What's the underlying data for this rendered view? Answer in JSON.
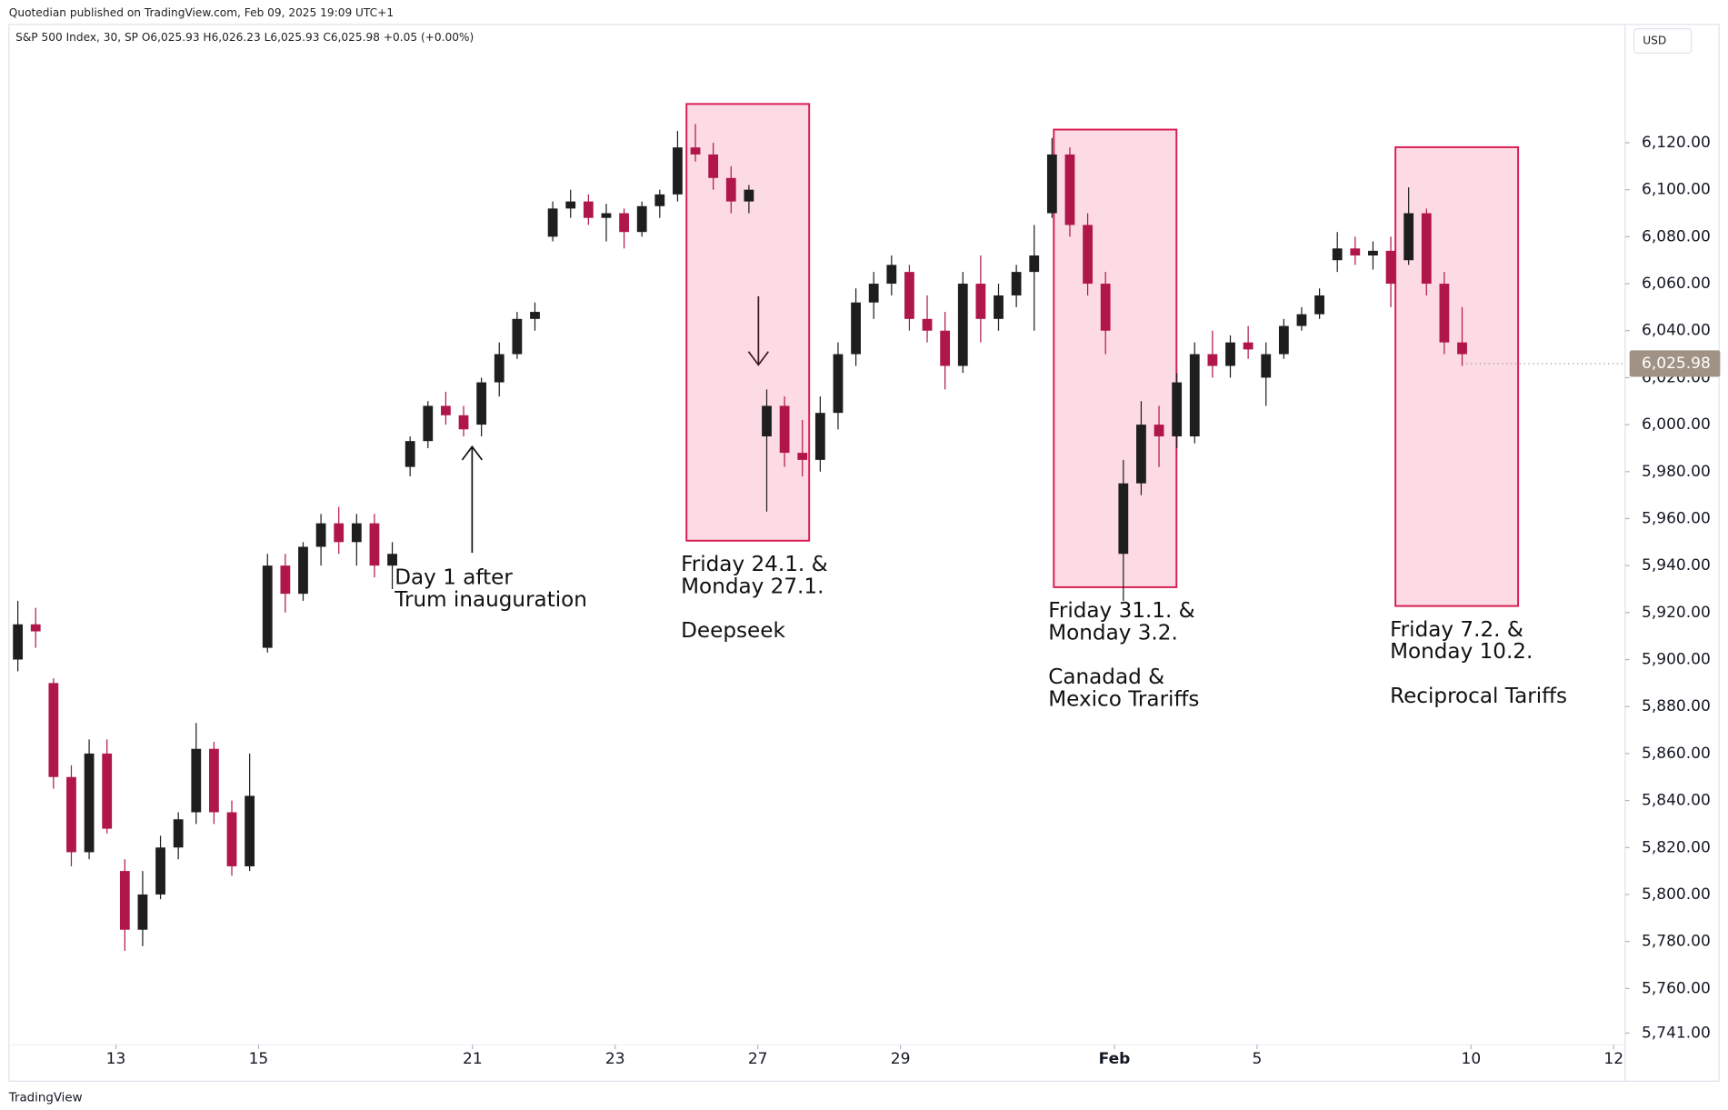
{
  "chart_data": {
    "type": "candlestick",
    "publisher": "Quotedian published on TradingView.com, Feb 09, 2025 19:09 UTC+1",
    "title": "S&P 500 Index, 30, SP  O6,025.93 H6,026.23 L6,025.93 C6,025.98 +0.05 (+0.00%)",
    "currency": "USD",
    "footer": "TradingView",
    "up_color": "#1e1e1e",
    "down_color": "#b0164a",
    "xlim": [
      -1.5,
      21.16
    ],
    "ylim": [
      5720.5,
      6170.4
    ],
    "xticks": [
      {
        "value": 0,
        "label": "13"
      },
      {
        "value": 2,
        "label": "15"
      },
      {
        "value": 5,
        "label": "21"
      },
      {
        "value": 7,
        "label": "23"
      },
      {
        "value": 9,
        "label": "27"
      },
      {
        "value": 11,
        "label": "29"
      },
      {
        "value": 14,
        "label": "Feb"
      },
      {
        "value": 16,
        "label": "5"
      },
      {
        "value": 19,
        "label": "10"
      },
      {
        "value": 21,
        "label": "12"
      }
    ],
    "yticks": [
      {
        "value": 5741,
        "label": "5,741.00"
      },
      {
        "value": 5760,
        "label": "5,760.00"
      },
      {
        "value": 5780,
        "label": "5,780.00"
      },
      {
        "value": 5800,
        "label": "5,800.00"
      },
      {
        "value": 5820,
        "label": "5,820.00"
      },
      {
        "value": 5840,
        "label": "5,840.00"
      },
      {
        "value": 5860,
        "label": "5,860.00"
      },
      {
        "value": 5880,
        "label": "5,880.00"
      },
      {
        "value": 5900,
        "label": "5,900.00"
      },
      {
        "value": 5920,
        "label": "5,920.00"
      },
      {
        "value": 5940,
        "label": "5,940.00"
      },
      {
        "value": 5960,
        "label": "5,960.00"
      },
      {
        "value": 5980,
        "label": "5,980.00"
      },
      {
        "value": 6000,
        "label": "6,000.00"
      },
      {
        "value": 6020,
        "label": "6,020.00"
      },
      {
        "value": 6040,
        "label": "6,040.00"
      },
      {
        "value": 6060,
        "label": "6,060.00"
      },
      {
        "value": 6080,
        "label": "6,080.00"
      },
      {
        "value": 6100,
        "label": "6,100.00"
      },
      {
        "value": 6120,
        "label": "6,120.00"
      }
    ],
    "last_price": {
      "value": 6025.98,
      "label": "6,025.98"
    },
    "x": [
      -1.375,
      -1.125,
      -0.875,
      -0.625,
      -0.375,
      -0.125,
      0.125,
      0.375,
      0.625,
      0.875,
      1.125,
      1.375,
      1.625,
      1.875,
      2.125,
      2.375,
      2.625,
      2.875,
      3.125,
      3.375,
      3.625,
      3.875,
      4.125,
      4.375,
      4.625,
      4.875,
      5.125,
      5.375,
      5.625,
      5.875,
      6.125,
      6.375,
      6.625,
      6.875,
      7.125,
      7.375,
      7.625,
      7.875,
      8.125,
      8.375,
      8.625,
      8.875,
      9.125,
      9.375,
      9.625,
      9.875,
      10.125,
      10.375,
      10.625,
      10.875,
      11.125,
      11.375,
      11.625,
      11.875,
      12.125,
      12.375,
      12.625,
      12.875,
      13.125,
      13.375,
      13.625,
      13.875,
      14.125,
      14.375,
      14.625,
      14.875,
      15.125,
      15.375,
      15.625,
      15.875,
      16.125,
      16.375,
      16.625,
      16.875,
      17.125,
      17.375,
      17.625,
      17.875,
      18.125,
      18.375,
      18.625,
      18.875
    ],
    "ohlc": [
      [
        5900,
        5925,
        5895,
        5915
      ],
      [
        5915,
        5922,
        5905,
        5912
      ],
      [
        5890,
        5892,
        5845,
        5850
      ],
      [
        5850,
        5855,
        5812,
        5818
      ],
      [
        5818,
        5866,
        5815,
        5860
      ],
      [
        5860,
        5866,
        5826,
        5828
      ],
      [
        5810,
        5815,
        5776,
        5785
      ],
      [
        5785,
        5810,
        5778,
        5800
      ],
      [
        5800,
        5825,
        5798,
        5820
      ],
      [
        5820,
        5835,
        5815,
        5832
      ],
      [
        5835,
        5873,
        5830,
        5862
      ],
      [
        5862,
        5865,
        5830,
        5835
      ],
      [
        5835,
        5840,
        5808,
        5812
      ],
      [
        5812,
        5860,
        5810,
        5842
      ],
      [
        5905,
        5945,
        5903,
        5940
      ],
      [
        5940,
        5945,
        5920,
        5928
      ],
      [
        5928,
        5950,
        5925,
        5948
      ],
      [
        5948,
        5962,
        5940,
        5958
      ],
      [
        5958,
        5965,
        5945,
        5950
      ],
      [
        5950,
        5962,
        5940,
        5958
      ],
      [
        5958,
        5962,
        5935,
        5940
      ],
      [
        5940,
        5950,
        5930,
        5945
      ],
      [
        5982,
        5995,
        5978,
        5993
      ],
      [
        5993,
        6010,
        5990,
        6008
      ],
      [
        6008,
        6014,
        6000,
        6004
      ],
      [
        6004,
        6008,
        5995,
        5998
      ],
      [
        6000,
        6020,
        5995,
        6018
      ],
      [
        6018,
        6035,
        6012,
        6030
      ],
      [
        6030,
        6048,
        6028,
        6045
      ],
      [
        6045,
        6052,
        6040,
        6048
      ],
      [
        6080,
        6095,
        6078,
        6092
      ],
      [
        6092,
        6100,
        6088,
        6095
      ],
      [
        6095,
        6098,
        6085,
        6088
      ],
      [
        6088,
        6094,
        6078,
        6090
      ],
      [
        6090,
        6092,
        6075,
        6082
      ],
      [
        6082,
        6095,
        6080,
        6093
      ],
      [
        6093,
        6100,
        6088,
        6098
      ],
      [
        6098,
        6125,
        6095,
        6118
      ],
      [
        6118,
        6128,
        6112,
        6115
      ],
      [
        6115,
        6120,
        6100,
        6105
      ],
      [
        6105,
        6110,
        6090,
        6095
      ],
      [
        6095,
        6102,
        6090,
        6100
      ],
      [
        5995,
        6015,
        5963,
        6008
      ],
      [
        6008,
        6012,
        5982,
        5988
      ],
      [
        5988,
        6002,
        5978,
        5985
      ],
      [
        5985,
        6012,
        5980,
        6005
      ],
      [
        6005,
        6035,
        5998,
        6030
      ],
      [
        6030,
        6058,
        6025,
        6052
      ],
      [
        6052,
        6065,
        6045,
        6060
      ],
      [
        6060,
        6072,
        6055,
        6068
      ],
      [
        6065,
        6068,
        6040,
        6045
      ],
      [
        6045,
        6055,
        6035,
        6040
      ],
      [
        6040,
        6048,
        6015,
        6025
      ],
      [
        6025,
        6065,
        6022,
        6060
      ],
      [
        6060,
        6072,
        6035,
        6045
      ],
      [
        6045,
        6060,
        6040,
        6055
      ],
      [
        6055,
        6068,
        6050,
        6065
      ],
      [
        6065,
        6085,
        6040,
        6072
      ],
      [
        6090,
        6122,
        6088,
        6115
      ],
      [
        6115,
        6118,
        6080,
        6085
      ],
      [
        6085,
        6090,
        6055,
        6060
      ],
      [
        6060,
        6065,
        6030,
        6040
      ],
      [
        5945,
        5985,
        5925,
        5975
      ],
      [
        5975,
        6010,
        5970,
        6000
      ],
      [
        6000,
        6008,
        5982,
        5995
      ],
      [
        5995,
        6022,
        5990,
        6018
      ],
      [
        5995,
        6035,
        5992,
        6030
      ],
      [
        6030,
        6040,
        6020,
        6025
      ],
      [
        6025,
        6038,
        6020,
        6035
      ],
      [
        6035,
        6042,
        6028,
        6032
      ],
      [
        6020,
        6035,
        6008,
        6030
      ],
      [
        6030,
        6045,
        6028,
        6042
      ],
      [
        6042,
        6050,
        6040,
        6047
      ],
      [
        6047,
        6058,
        6045,
        6055
      ],
      [
        6070,
        6082,
        6065,
        6075
      ],
      [
        6075,
        6080,
        6068,
        6072
      ],
      [
        6072,
        6078,
        6066,
        6074
      ],
      [
        6074,
        6080,
        6050,
        6060
      ],
      [
        6070,
        6101,
        6068,
        6090
      ],
      [
        6090,
        6092,
        6055,
        6060
      ],
      [
        6060,
        6065,
        6030,
        6035
      ],
      [
        6035,
        6050,
        6025,
        6030
      ]
    ],
    "boxes": [
      {
        "x": [
          8.0,
          9.72
        ],
        "y": [
          5950.6,
          6136.5
        ],
        "lines": [
          "Friday 24.1. &",
          "Monday 27.1."
        ],
        "note": [
          "Deepseek"
        ]
      },
      {
        "x": [
          13.15,
          14.87
        ],
        "y": [
          5930.8,
          6125.6
        ],
        "lines": [
          "Friday 31.1. &",
          "Monday 3.2."
        ],
        "note": [
          "Canadad &",
          "Mexico Trariffs"
        ]
      },
      {
        "x": [
          17.94,
          19.66
        ],
        "y": [
          5922.8,
          6118.1
        ],
        "lines": [
          "Friday 7.2. &",
          "Monday 10.2."
        ],
        "note": [
          "Reciprocal Tariffs"
        ]
      }
    ],
    "callout": [
      "Day 1 after",
      "Trum inauguration"
    ]
  }
}
